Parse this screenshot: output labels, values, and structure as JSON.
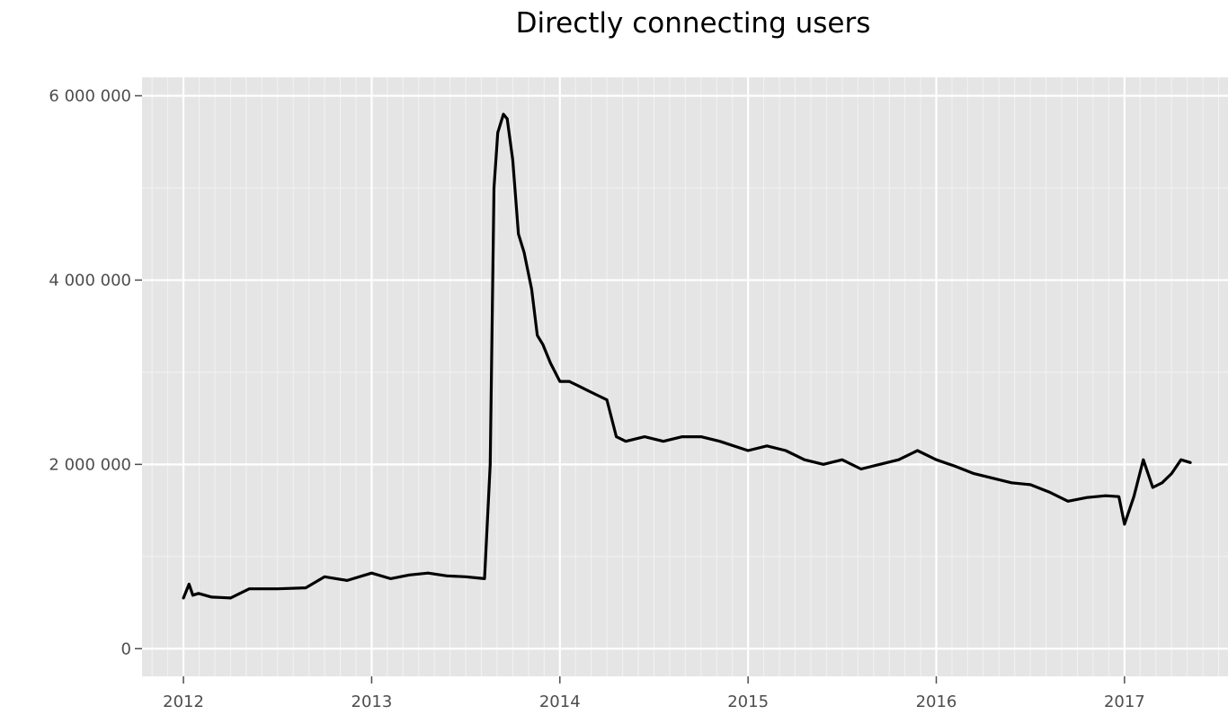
{
  "chart_data": {
    "type": "line",
    "title": "Directly connecting users",
    "xlabel": "",
    "ylabel": "",
    "x_ticks": [
      {
        "value": 2012,
        "label": "2012"
      },
      {
        "value": 2013,
        "label": "2013"
      },
      {
        "value": 2014,
        "label": "2014"
      },
      {
        "value": 2015,
        "label": "2015"
      },
      {
        "value": 2016,
        "label": "2016"
      },
      {
        "value": 2017,
        "label": "2017"
      }
    ],
    "y_ticks": [
      {
        "value": 0,
        "label": "0"
      },
      {
        "value": 2000000,
        "label": "2 000 000"
      },
      {
        "value": 4000000,
        "label": "4 000 000"
      },
      {
        "value": 6000000,
        "label": "6 000 000"
      }
    ],
    "xlim": [
      2011.78,
      2017.55
    ],
    "ylim": [
      -300000,
      6200000
    ],
    "grid": true,
    "legend": "none",
    "colors": {
      "panel": "#e5e5e5",
      "series": "#000000"
    },
    "series": [
      {
        "x": [
          2012.0,
          2012.03,
          2012.05,
          2012.08,
          2012.15,
          2012.25,
          2012.35,
          2012.5,
          2012.65,
          2012.75,
          2012.87,
          2013.0,
          2013.1,
          2013.2,
          2013.3,
          2013.4,
          2013.5,
          2013.55,
          2013.6,
          2013.63,
          2013.65,
          2013.67,
          2013.7,
          2013.72,
          2013.75,
          2013.78,
          2013.81,
          2013.85,
          2013.88,
          2013.91,
          2013.95,
          2014.0,
          2014.05,
          2014.1,
          2014.15,
          2014.2,
          2014.25,
          2014.3,
          2014.35,
          2014.45,
          2014.55,
          2014.65,
          2014.75,
          2014.85,
          2015.0,
          2015.1,
          2015.2,
          2015.3,
          2015.4,
          2015.5,
          2015.6,
          2015.7,
          2015.8,
          2015.9,
          2016.0,
          2016.1,
          2016.2,
          2016.3,
          2016.4,
          2016.5,
          2016.6,
          2016.7,
          2016.8,
          2016.9,
          2016.97,
          2017.0,
          2017.05,
          2017.1,
          2017.15,
          2017.2,
          2017.25,
          2017.3,
          2017.35
        ],
        "y": [
          550000,
          700000,
          580000,
          600000,
          560000,
          550000,
          650000,
          650000,
          660000,
          780000,
          740000,
          820000,
          760000,
          800000,
          820000,
          790000,
          780000,
          770000,
          760000,
          2000000,
          5000000,
          5600000,
          5800000,
          5750000,
          5300000,
          4500000,
          4300000,
          3900000,
          3400000,
          3300000,
          3100000,
          2900000,
          2900000,
          2850000,
          2800000,
          2750000,
          2700000,
          2300000,
          2250000,
          2300000,
          2250000,
          2300000,
          2300000,
          2250000,
          2150000,
          2200000,
          2150000,
          2050000,
          2000000,
          2050000,
          1950000,
          2000000,
          2050000,
          2150000,
          2050000,
          1980000,
          1900000,
          1850000,
          1800000,
          1780000,
          1700000,
          1600000,
          1640000,
          1660000,
          1650000,
          1350000,
          1650000,
          2050000,
          1750000,
          1800000,
          1900000,
          2050000,
          2020000
        ]
      }
    ]
  }
}
